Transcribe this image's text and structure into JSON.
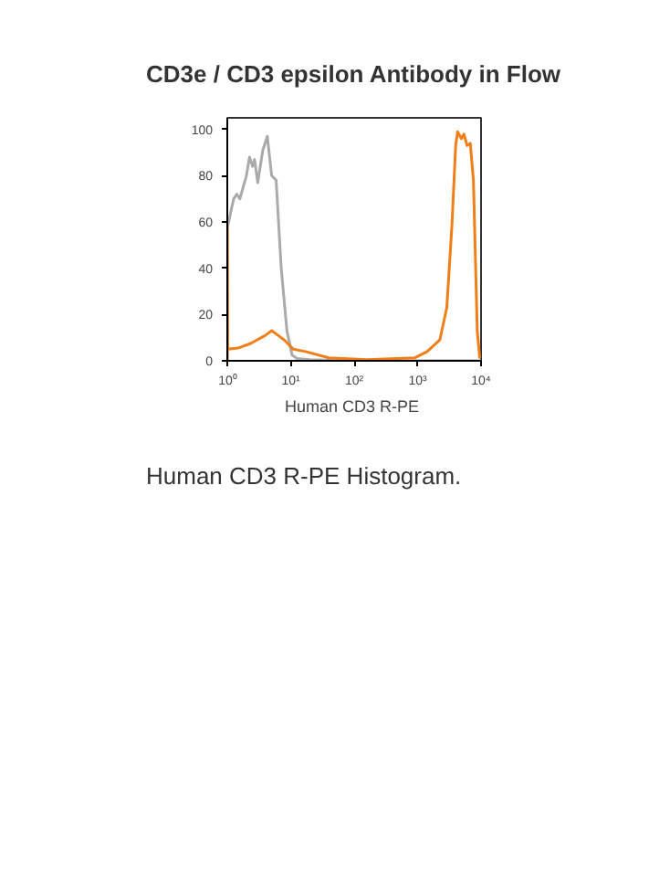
{
  "chart_data": {
    "type": "line",
    "title": "CD3e / CD3 epsilon Antibody in Flow",
    "xlabel": "Human CD3  R-PE",
    "annotations": [
      "Human CD3 R-PE Histogram."
    ],
    "log": "x",
    "grid": false,
    "xlim": [
      1,
      10000
    ],
    "ylim": [
      0,
      105
    ],
    "xticks": [
      {
        "value": 1,
        "label": "10⁰"
      },
      {
        "value": 10,
        "label": "10¹"
      },
      {
        "value": 100,
        "label": "10²"
      },
      {
        "value": 1000,
        "label": "10³"
      },
      {
        "value": 10000,
        "label": "10⁴"
      }
    ],
    "yticks": [
      0,
      20,
      40,
      60,
      80,
      100
    ],
    "series": [
      {
        "color": "#aaaaaa",
        "x": [
          1,
          1,
          1.05,
          1.26,
          1.41,
          1.58,
          2.0,
          2.24,
          2.51,
          2.69,
          3.02,
          3.63,
          4.27,
          5.01,
          5.89,
          7.08,
          8.71,
          10.5,
          12.6,
          20,
          100,
          10000
        ],
        "values": [
          0,
          58,
          60,
          70,
          72,
          70,
          80,
          88,
          84,
          87,
          77,
          91,
          97,
          80,
          78,
          40,
          13,
          2.5,
          1,
          0.5,
          0,
          0
        ]
      },
      {
        "color": "#f07f1a",
        "x": [
          1,
          1,
          1.02,
          1.48,
          2.34,
          3.98,
          5.01,
          6.31,
          7.94,
          11,
          17,
          39.8,
          158,
          912,
          1413,
          2239,
          2884,
          3467,
          3981,
          4266,
          4898,
          5370,
          6026,
          6761,
          7586,
          8710,
          9550
        ],
        "values": [
          0,
          58,
          5,
          5.5,
          7.5,
          11,
          13,
          11,
          9,
          5,
          4,
          1.3,
          0.5,
          1.3,
          4,
          9,
          23,
          58,
          93,
          99,
          96,
          98,
          93,
          94,
          78,
          13,
          1
        ]
      }
    ]
  }
}
